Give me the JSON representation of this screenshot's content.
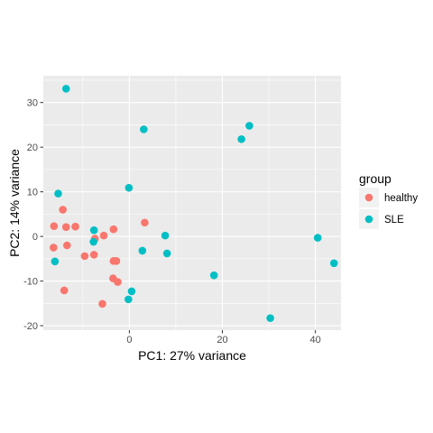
{
  "chart_data": {
    "type": "scatter",
    "title": "",
    "xlabel": "PC1: 27% variance",
    "ylabel": "PC2: 14% variance",
    "xlim": [
      -18.5,
      45.5
    ],
    "ylim": [
      -21,
      36
    ],
    "xticks": [
      0,
      20,
      40
    ],
    "yticks": [
      -20,
      -10,
      0,
      10,
      20,
      30
    ],
    "grid": true,
    "legend": {
      "title": "group",
      "placement": "right"
    },
    "series": [
      {
        "name": "healthy",
        "color": "#F8766D",
        "points": [
          [
            -16.2,
            2.3
          ],
          [
            -13.6,
            2.1
          ],
          [
            -11.6,
            2.2
          ],
          [
            -14.3,
            6.0
          ],
          [
            -16.3,
            -2.5
          ],
          [
            -13.4,
            -2.0
          ],
          [
            -9.6,
            -4.4
          ],
          [
            -7.6,
            -4.1
          ],
          [
            -5.5,
            0.2
          ],
          [
            -3.4,
            1.6
          ],
          [
            -7.4,
            -0.5
          ],
          [
            -3.4,
            -5.5
          ],
          [
            -2.8,
            -5.5
          ],
          [
            -3.5,
            -9.4
          ],
          [
            -2.5,
            -10.2
          ],
          [
            -5.8,
            -15.1
          ],
          [
            -14.0,
            -12.1
          ],
          [
            3.3,
            3.1
          ]
        ]
      },
      {
        "name": "SLE",
        "color": "#00BFC4",
        "points": [
          [
            -13.6,
            33.1
          ],
          [
            -15.3,
            9.6
          ],
          [
            -7.6,
            1.4
          ],
          [
            -7.7,
            -1.2
          ],
          [
            -16.0,
            -5.6
          ],
          [
            -0.1,
            10.9
          ],
          [
            3.1,
            24.0
          ],
          [
            2.8,
            -3.2
          ],
          [
            7.7,
            0.2
          ],
          [
            8.1,
            -3.8
          ],
          [
            0.5,
            -12.3
          ],
          [
            -0.2,
            -14.1
          ],
          [
            18.2,
            -8.7
          ],
          [
            24.1,
            21.8
          ],
          [
            25.8,
            24.8
          ],
          [
            30.3,
            -18.3
          ],
          [
            40.5,
            -0.3
          ],
          [
            44.0,
            -6.0
          ]
        ]
      }
    ]
  }
}
